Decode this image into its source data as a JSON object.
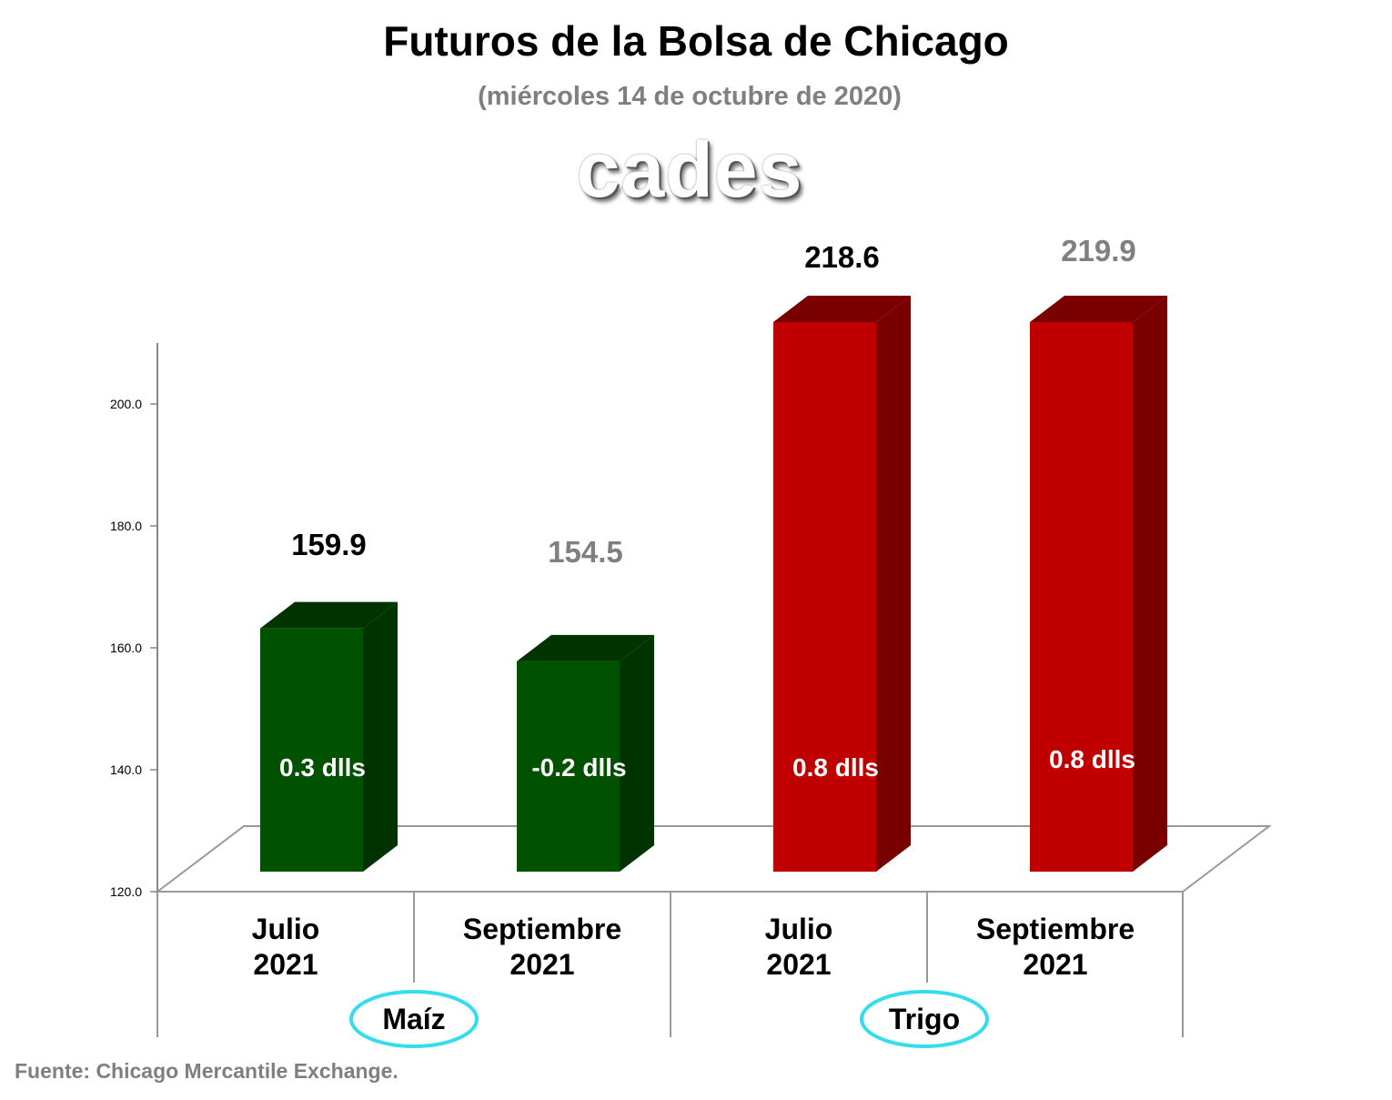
{
  "title": "Futuros de la Bolsa de Chicago",
  "subtitle": "(miércoles 14 de octubre de 2020)",
  "logo_text": "cades",
  "source": "Fuente: Chicago Mercantile Exchange.",
  "chart_data": {
    "type": "bar",
    "yticks": [
      "120.0",
      "140.0",
      "160.0",
      "180.0",
      "200.0"
    ],
    "ylim": [
      120,
      215
    ],
    "bars": [
      {
        "month": "Julio",
        "year": "2021",
        "value": 159.9,
        "value_label": "159.9",
        "change_label": "0.3 dlls",
        "group": "Maíz",
        "color": "#005100",
        "side": "#003300",
        "value_color": "#000000"
      },
      {
        "month": "Septiembre",
        "year": "2021",
        "value": 154.5,
        "value_label": "154.5",
        "change_label": "-0.2 dlls",
        "group": "Maíz",
        "color": "#005100",
        "side": "#003300",
        "value_color": "#808080"
      },
      {
        "month": "Julio",
        "year": "2021",
        "value": 218.6,
        "value_label": "218.6",
        "change_label": "0.8 dlls",
        "group": "Trigo",
        "color": "#c00000",
        "side": "#7a0000",
        "value_color": "#000000"
      },
      {
        "month": "Septiembre",
        "year": "2021",
        "value": 219.9,
        "value_label": "219.9",
        "change_label": "0.8 dlls",
        "group": "Trigo",
        "color": "#c00000",
        "side": "#7a0000",
        "value_color": "#808080"
      }
    ],
    "groups": [
      {
        "name": "Maíz",
        "ellipse_color": "#33ddee"
      },
      {
        "name": "Trigo",
        "ellipse_color": "#33ddee"
      }
    ]
  }
}
